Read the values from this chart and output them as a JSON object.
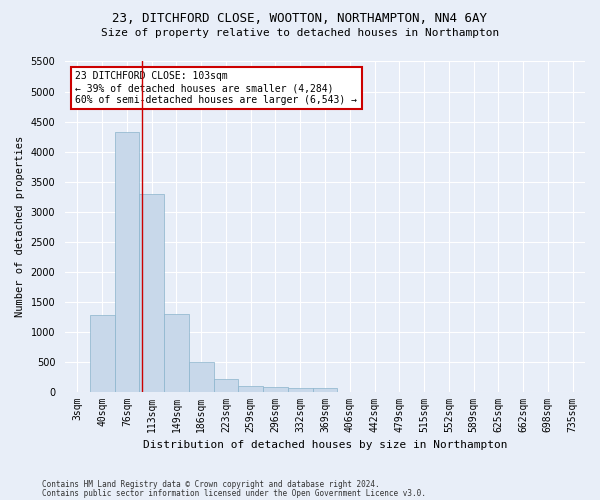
{
  "title1": "23, DITCHFORD CLOSE, WOOTTON, NORTHAMPTON, NN4 6AY",
  "title2": "Size of property relative to detached houses in Northampton",
  "xlabel": "Distribution of detached houses by size in Northampton",
  "ylabel": "Number of detached properties",
  "footnote1": "Contains HM Land Registry data © Crown copyright and database right 2024.",
  "footnote2": "Contains public sector information licensed under the Open Government Licence v3.0.",
  "bar_labels": [
    "3sqm",
    "40sqm",
    "76sqm",
    "113sqm",
    "149sqm",
    "186sqm",
    "223sqm",
    "259sqm",
    "296sqm",
    "332sqm",
    "369sqm",
    "406sqm",
    "442sqm",
    "479sqm",
    "515sqm",
    "552sqm",
    "589sqm",
    "625sqm",
    "662sqm",
    "698sqm",
    "735sqm"
  ],
  "bar_values": [
    0,
    1270,
    4330,
    3300,
    1290,
    490,
    215,
    90,
    80,
    55,
    55,
    0,
    0,
    0,
    0,
    0,
    0,
    0,
    0,
    0,
    0
  ],
  "bar_color": "#c8d8ea",
  "bar_edge_color": "#8ab4cc",
  "vline_x": 2.6,
  "vline_color": "#cc0000",
  "annotation_text": "23 DITCHFORD CLOSE: 103sqm\n← 39% of detached houses are smaller (4,284)\n60% of semi-detached houses are larger (6,543) →",
  "annotation_box_color": "white",
  "annotation_box_edge": "#cc0000",
  "ylim": [
    0,
    5500
  ],
  "yticks": [
    0,
    500,
    1000,
    1500,
    2000,
    2500,
    3000,
    3500,
    4000,
    4500,
    5000,
    5500
  ],
  "bg_color": "#e8eef8",
  "axes_bg_color": "#e8eef8",
  "grid_color": "#ffffff",
  "title1_fontsize": 9,
  "title2_fontsize": 8,
  "ylabel_fontsize": 7.5,
  "xlabel_fontsize": 8,
  "tick_fontsize": 7,
  "footnote_fontsize": 5.5,
  "annot_fontsize": 7
}
